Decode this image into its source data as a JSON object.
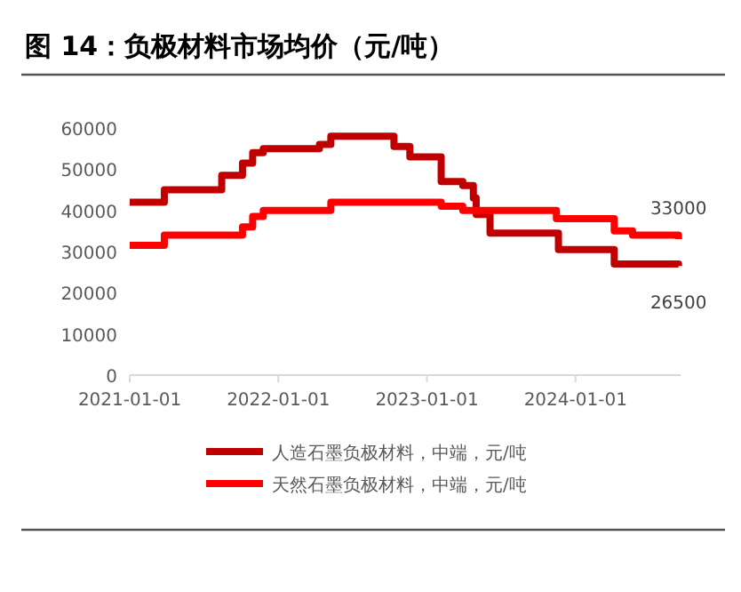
{
  "chart_data": {
    "type": "step",
    "title": "图 14：负极材料市场均价（元/吨）",
    "xlim": [
      "2021-01-01",
      "2024-09-15"
    ],
    "xticks": [
      "2021-01-01",
      "2022-01-01",
      "2023-01-01",
      "2024-01-01"
    ],
    "ylim": [
      0,
      60000
    ],
    "yticks": [
      0,
      10000,
      20000,
      30000,
      40000,
      50000,
      60000
    ],
    "legend": "bottom",
    "series": [
      {
        "name": "人造石墨负极材料，中端，元/吨",
        "color": "#c00000",
        "x": [
          "2021-01-01",
          "2021-03-27",
          "2021-08-15",
          "2021-10-05",
          "2021-10-30",
          "2021-11-25",
          "2022-04-12",
          "2022-05-10",
          "2022-10-12",
          "2022-11-20",
          "2023-02-05",
          "2023-03-30",
          "2023-04-25",
          "2023-05-02",
          "2023-06-05",
          "2023-11-20",
          "2024-04-05",
          "2024-09-10"
        ],
        "values": [
          42000,
          45000,
          48500,
          51500,
          54000,
          55000,
          56000,
          58000,
          55500,
          53000,
          47000,
          46000,
          43000,
          39000,
          34500,
          30500,
          27000,
          26500
        ]
      },
      {
        "name": "天然石墨负极材料，中端，元/吨",
        "color": "#ff0000",
        "x": [
          "2021-01-01",
          "2021-03-27",
          "2021-10-05",
          "2021-10-30",
          "2021-11-25",
          "2022-05-10",
          "2023-02-05",
          "2023-03-30",
          "2023-11-15",
          "2024-04-05",
          "2024-05-20",
          "2024-09-10"
        ],
        "values": [
          31500,
          34000,
          36000,
          38500,
          40000,
          42000,
          41000,
          40000,
          38000,
          35000,
          34000,
          33000
        ]
      }
    ],
    "annotations": [
      {
        "text": "33000",
        "x": "2024-09-10",
        "y": 33000
      },
      {
        "text": "26500",
        "x": "2024-09-10",
        "y": 26500
      }
    ]
  }
}
